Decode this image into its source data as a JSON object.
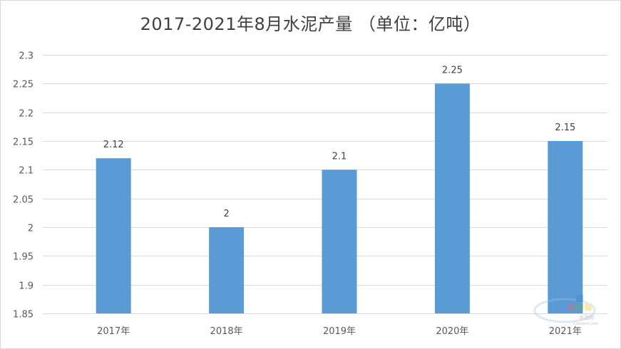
{
  "chart_data": {
    "type": "bar",
    "title": "2017-2021年8月水泥产量 （单位：亿吨）",
    "categories": [
      "2017年",
      "2018年",
      "2019年",
      "2020年",
      "2021年"
    ],
    "values": [
      2.12,
      2,
      2.1,
      2.25,
      2.15
    ],
    "data_labels": [
      "2.12",
      "2",
      "2.1",
      "2.25",
      "2.15"
    ],
    "ylim": [
      1.85,
      2.3
    ],
    "y_ticks": [
      1.85,
      1.9,
      1.95,
      2,
      2.05,
      2.1,
      2.15,
      2.2,
      2.25,
      2.3
    ],
    "y_tick_labels": [
      "1.85",
      "1.9",
      "1.95",
      "2",
      "2.05",
      "2.1",
      "2.15",
      "2.2",
      "2.25",
      "2.3"
    ],
    "xlabel": "",
    "ylabel": "",
    "grid": true,
    "bar_color": "#5b9bd5"
  },
  "watermark": {
    "text": "水泥网",
    "subtext": "Ccement.com"
  }
}
